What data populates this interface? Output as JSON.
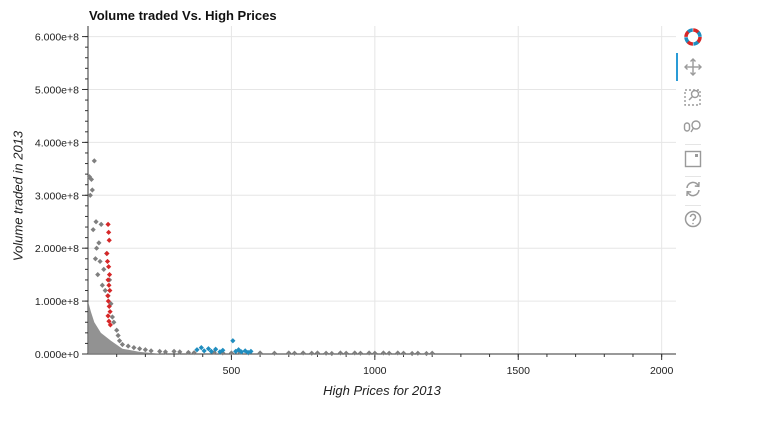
{
  "chart_data": {
    "type": "scatter",
    "title": "Volume traded Vs. High Prices",
    "xlabel": "High Prices for 2013",
    "ylabel": "Volume traded in 2013",
    "xlim": [
      0,
      2050
    ],
    "ylim": [
      0,
      620000000
    ],
    "x_ticks": [
      500,
      1000,
      1500,
      2000
    ],
    "x_tick_labels": [
      "500",
      "1000",
      "1500",
      "2000"
    ],
    "y_ticks": [
      0,
      100000000,
      200000000,
      300000000,
      400000000,
      500000000,
      600000000
    ],
    "y_tick_labels": [
      "0.000e+0",
      "1.000e+8",
      "2.000e+8",
      "3.000e+8",
      "4.000e+8",
      "5.000e+8",
      "6.000e+8"
    ],
    "grid": true,
    "marker": "diamond",
    "series": [
      {
        "color": "#7f7f7f",
        "points": [
          [
            5,
            335000000
          ],
          [
            8,
            300000000
          ],
          [
            12,
            330000000
          ],
          [
            15,
            310000000
          ],
          [
            18,
            235000000
          ],
          [
            22,
            365000000
          ],
          [
            26,
            180000000
          ],
          [
            28,
            250000000
          ],
          [
            30,
            200000000
          ],
          [
            34,
            150000000
          ],
          [
            38,
            210000000
          ],
          [
            42,
            175000000
          ],
          [
            46,
            245000000
          ],
          [
            50,
            130000000
          ],
          [
            55,
            160000000
          ],
          [
            60,
            120000000
          ],
          [
            65,
            190000000
          ],
          [
            70,
            110000000
          ],
          [
            75,
            140000000
          ],
          [
            80,
            95000000
          ],
          [
            85,
            70000000
          ],
          [
            90,
            60000000
          ],
          [
            100,
            45000000
          ],
          [
            105,
            35000000
          ],
          [
            110,
            25000000
          ],
          [
            120,
            18000000
          ],
          [
            140,
            15000000
          ],
          [
            160,
            12000000
          ],
          [
            180,
            10000000
          ],
          [
            200,
            8000000
          ],
          [
            220,
            6000000
          ],
          [
            250,
            5000000
          ],
          [
            270,
            4000000
          ],
          [
            300,
            5000000
          ],
          [
            320,
            4000000
          ],
          [
            350,
            3000000
          ],
          [
            370,
            2500000
          ],
          [
            440,
            3000000
          ],
          [
            470,
            2000000
          ],
          [
            500,
            2000000
          ],
          [
            530,
            3000000
          ],
          [
            560,
            2000000
          ],
          [
            600,
            2000000
          ],
          [
            650,
            1500000
          ],
          [
            700,
            2000000
          ],
          [
            720,
            1500000
          ],
          [
            750,
            2000000
          ],
          [
            780,
            1500000
          ],
          [
            800,
            2000000
          ],
          [
            830,
            1500000
          ],
          [
            850,
            1000000
          ],
          [
            880,
            2000000
          ],
          [
            900,
            1500000
          ],
          [
            930,
            2000000
          ],
          [
            950,
            1500000
          ],
          [
            980,
            2000000
          ],
          [
            1000,
            1500000
          ],
          [
            1030,
            2000000
          ],
          [
            1050,
            1500000
          ],
          [
            1080,
            2000000
          ],
          [
            1100,
            1500000
          ],
          [
            1130,
            1000000
          ],
          [
            1150,
            1500000
          ],
          [
            1180,
            1000000
          ],
          [
            1200,
            1500000
          ]
        ]
      },
      {
        "color": "#d62728",
        "points": [
          [
            70,
            245000000
          ],
          [
            72,
            230000000
          ],
          [
            74,
            215000000
          ],
          [
            66,
            190000000
          ],
          [
            68,
            175000000
          ],
          [
            72,
            165000000
          ],
          [
            75,
            150000000
          ],
          [
            70,
            140000000
          ],
          [
            73,
            130000000
          ],
          [
            76,
            120000000
          ],
          [
            69,
            110000000
          ],
          [
            71,
            100000000
          ],
          [
            74,
            90000000
          ],
          [
            77,
            80000000
          ],
          [
            70,
            72000000
          ],
          [
            73,
            62000000
          ],
          [
            78,
            55000000
          ]
        ]
      },
      {
        "color": "#1f8dbf",
        "points": [
          [
            380,
            8000000
          ],
          [
            395,
            12000000
          ],
          [
            405,
            6000000
          ],
          [
            420,
            10000000
          ],
          [
            430,
            5000000
          ],
          [
            445,
            9000000
          ],
          [
            460,
            4000000
          ],
          [
            470,
            7000000
          ],
          [
            505,
            25000000
          ],
          [
            515,
            5000000
          ],
          [
            525,
            8000000
          ],
          [
            535,
            4000000
          ],
          [
            548,
            6000000
          ],
          [
            558,
            3000000
          ],
          [
            568,
            5000000
          ]
        ]
      }
    ]
  },
  "toolbar": {
    "tools": [
      {
        "icon": "bokeh-logo-icon"
      },
      {
        "icon": "pan-icon"
      },
      {
        "icon": "box-zoom-icon"
      },
      {
        "icon": "wheel-zoom-icon"
      },
      {
        "icon": "save-icon"
      },
      {
        "icon": "reset-icon"
      },
      {
        "icon": "help-icon"
      }
    ],
    "active_tool": "pan-icon"
  }
}
